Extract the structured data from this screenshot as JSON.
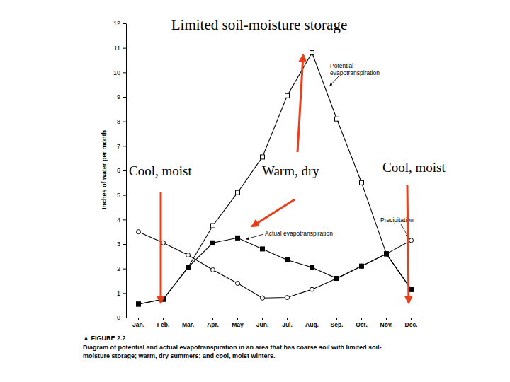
{
  "chart_data": {
    "type": "line",
    "title": "Limited soil-moisture storage",
    "ylabel": "Inches of water per month",
    "categories": [
      "Jan.",
      "Feb.",
      "Mar.",
      "Apr.",
      "May",
      "Jun.",
      "Jul.",
      "Aug.",
      "Sep.",
      "Oct.",
      "Nov.",
      "Dec."
    ],
    "series": [
      {
        "name": "Potential evapotranspiration",
        "color": "#000000",
        "marker": "square-open",
        "line_style": "solid",
        "values": [
          0.55,
          0.75,
          2.05,
          3.75,
          5.1,
          6.55,
          9.05,
          10.8,
          8.1,
          5.5,
          2.6,
          1.15
        ]
      },
      {
        "name": "Precipitation",
        "color": "#000000",
        "marker": "circle-open",
        "line_style": "solid",
        "values": [
          3.5,
          3.05,
          2.55,
          1.95,
          1.4,
          0.8,
          0.82,
          1.15,
          1.6,
          2.1,
          2.6,
          3.15
        ]
      },
      {
        "name": "Actual evapotranspiration",
        "color": "#000000",
        "marker": "square",
        "line_style": "solid",
        "values": [
          0.55,
          0.75,
          2.05,
          3.05,
          3.25,
          2.8,
          2.35,
          2.05,
          1.6,
          2.1,
          2.6,
          1.15
        ]
      }
    ],
    "ylim": [
      0,
      12
    ],
    "yticks": [
      0,
      1,
      2,
      3,
      4,
      5,
      6,
      7,
      8,
      9,
      10,
      11,
      12
    ],
    "grid": false,
    "annotations": [
      "Cool, moist",
      "Warm, dry",
      "Cool, moist"
    ],
    "figure_label": "▲ FIGURE 2.2",
    "caption": [
      "Diagram of potential and actual evapotranspiration in an area that has coarse soil with limited soil-",
      "moisture storage; warm, dry summers; and cool, moist winters."
    ]
  }
}
